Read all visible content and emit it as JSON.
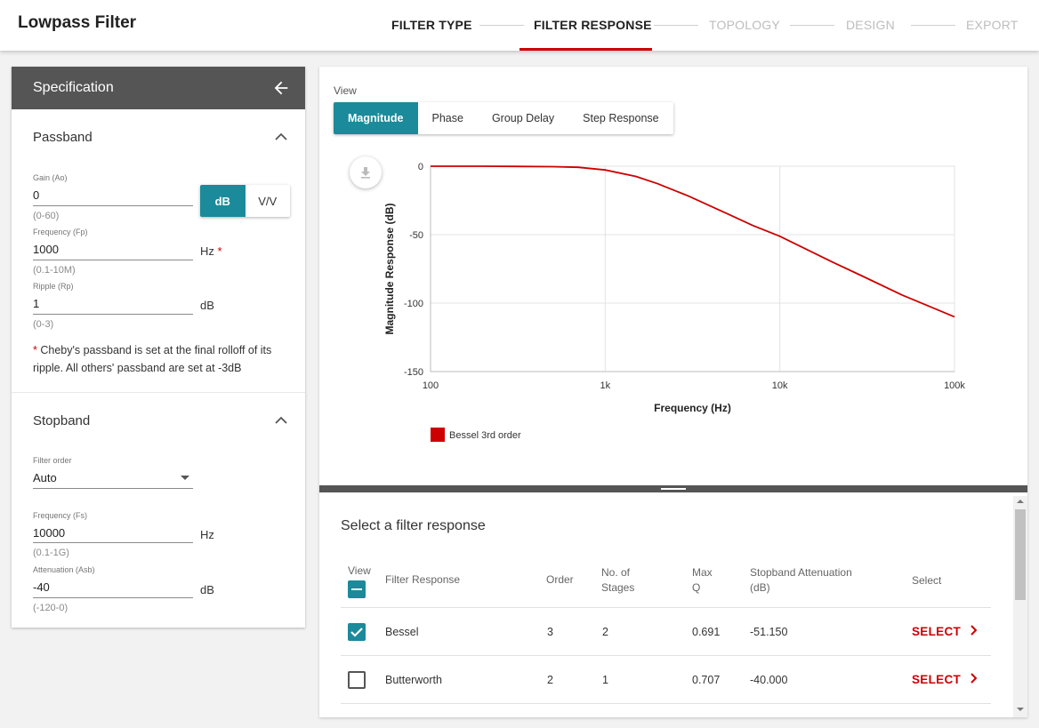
{
  "app": {
    "title": "Lowpass Filter"
  },
  "steps": [
    {
      "label": "FILTER TYPE",
      "state": "done"
    },
    {
      "label": "FILTER RESPONSE",
      "state": "active"
    },
    {
      "label": "TOPOLOGY",
      "state": "todo"
    },
    {
      "label": "DESIGN",
      "state": "todo"
    },
    {
      "label": "EXPORT",
      "state": "todo"
    }
  ],
  "spec": {
    "title": "Specification",
    "back_icon": "arrow-left-icon",
    "passband": {
      "title": "Passband",
      "gain": {
        "label": "Gain (Ao)",
        "value": "0",
        "hint": "(0-60)"
      },
      "unit_toggle": {
        "on": "dB",
        "off": "V/V"
      },
      "frequency": {
        "label": "Frequency (Fp)",
        "value": "1000",
        "hint": "(0.1-10M)",
        "unit": "Hz",
        "required": "*"
      },
      "ripple": {
        "label": "Ripple (Rp)",
        "value": "1",
        "hint": "(0-3)",
        "unit": "dB"
      },
      "note_marker": "*",
      "note": " Cheby's passband is set at the final rolloff of its ripple. All others' passband are set at -3dB"
    },
    "stopband": {
      "title": "Stopband",
      "order": {
        "label": "Filter order",
        "value": "Auto"
      },
      "frequency": {
        "label": "Frequency (Fs)",
        "value": "10000",
        "hint": "(0.1-1G)",
        "unit": "Hz"
      },
      "attenuation": {
        "label": "Attenuation (Asb)",
        "value": "-40",
        "hint": "(-120-0)",
        "unit": "dB"
      }
    }
  },
  "view": {
    "label": "View",
    "tabs": [
      "Magnitude",
      "Phase",
      "Group Delay",
      "Step Response"
    ],
    "active_tab": "Magnitude"
  },
  "chart_data": {
    "type": "line",
    "xlabel": "Frequency (Hz)",
    "ylabel": "Magnitude Response (dB)",
    "x_scale": "log",
    "xlim": [
      100,
      100000
    ],
    "ylim": [
      -150,
      0
    ],
    "x_ticks": [
      100,
      1000,
      10000,
      100000
    ],
    "x_tick_labels": [
      "100",
      "1k",
      "10k",
      "100k"
    ],
    "y_ticks": [
      0,
      -50,
      -100,
      -150
    ],
    "y_tick_labels": [
      "0",
      "-50",
      "-100",
      "-150"
    ],
    "grid": true,
    "legend": "bottom-left",
    "series": [
      {
        "name": "Bessel 3rd order",
        "color": "#cc0000",
        "x": [
          100,
          200,
          300,
          500,
          700,
          1000,
          1500,
          2000,
          3000,
          5000,
          7000,
          10000,
          20000,
          30000,
          50000,
          100000
        ],
        "y": [
          0,
          0,
          -0.1,
          -0.3,
          -0.8,
          -2.7,
          -7.5,
          -12.8,
          -21.8,
          -34.7,
          -43.3,
          -51.2,
          -70.0,
          -80.5,
          -94.0,
          -110.0
        ]
      }
    ]
  },
  "table": {
    "title": "Select a filter response",
    "headers": {
      "view": "View",
      "response": "Filter Response",
      "order": "Order",
      "stages": "No. of Stages",
      "maxq": "Max Q",
      "atten": "Stopband Attenuation (dB)",
      "select": "Select"
    },
    "rows": [
      {
        "checked": true,
        "response": "Bessel",
        "order": "3",
        "stages": "2",
        "maxq": "0.691",
        "atten": "-51.150",
        "select": "SELECT"
      },
      {
        "checked": false,
        "response": "Butterworth",
        "order": "2",
        "stages": "1",
        "maxq": "0.707",
        "atten": "-40.000",
        "select": "SELECT"
      }
    ]
  }
}
